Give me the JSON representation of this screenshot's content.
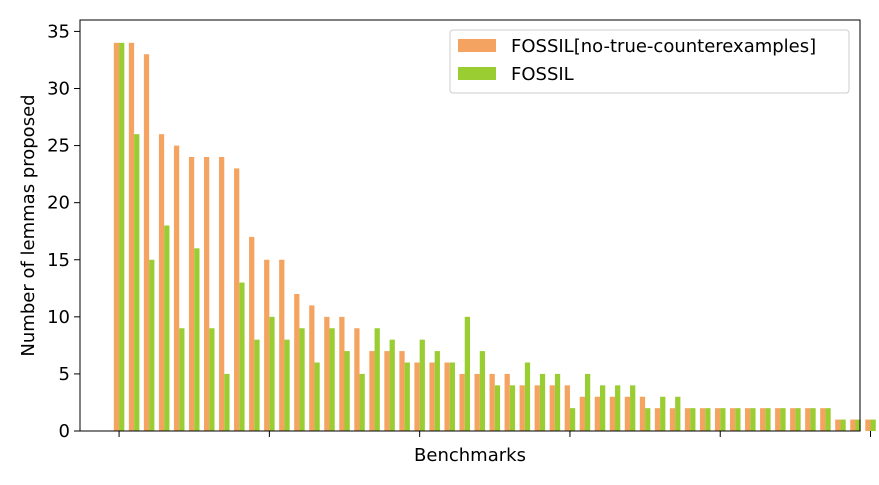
{
  "chart_data": {
    "type": "bar",
    "title": "",
    "xlabel": "Benchmarks",
    "ylabel": "Number of lemmas proposed",
    "ylim": [
      0,
      36
    ],
    "yticks": [
      0,
      5,
      10,
      15,
      20,
      25,
      30,
      35
    ],
    "xlim": [
      -2.6,
      49.3
    ],
    "xticks": [
      0,
      10,
      20,
      30,
      40,
      50
    ],
    "xtick_labels_shown": false,
    "legend_position": "upper right",
    "series": [
      {
        "name": "FOSSIL[no-true-counterexamples]",
        "color": "#f4a460",
        "values": [
          34,
          34,
          33,
          26,
          25,
          24,
          24,
          24,
          23,
          17,
          15,
          15,
          12,
          11,
          10,
          10,
          9,
          7,
          7,
          7,
          6,
          6,
          6,
          5,
          5,
          5,
          5,
          4,
          4,
          4,
          4,
          3,
          3,
          3,
          3,
          3,
          2,
          2,
          2,
          2,
          2,
          2,
          2,
          2,
          2,
          2,
          2,
          2,
          1,
          1,
          1
        ]
      },
      {
        "name": "FOSSIL",
        "color": "#9acd32",
        "values": [
          34,
          26,
          15,
          18,
          9,
          16,
          9,
          5,
          13,
          8,
          10,
          8,
          9,
          6,
          9,
          7,
          5,
          9,
          8,
          6,
          8,
          7,
          6,
          10,
          7,
          4,
          4,
          6,
          5,
          5,
          2,
          5,
          4,
          4,
          4,
          2,
          3,
          3,
          2,
          2,
          2,
          2,
          2,
          2,
          2,
          2,
          2,
          2,
          1,
          1,
          1
        ]
      }
    ]
  }
}
